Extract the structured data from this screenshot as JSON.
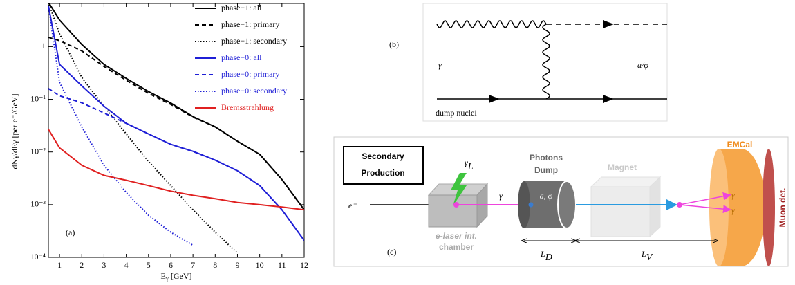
{
  "chart_data": {
    "type": "line",
    "ylabel": "dNγ/dEγ [per e⁻/GeV]",
    "xlabel": {
      "text": "E",
      "sub": "γ",
      "rest": " [GeV]"
    },
    "annotation": "(a)",
    "x": [
      0.5,
      1,
      2,
      3,
      4,
      5,
      6,
      7,
      8,
      9,
      10,
      11,
      12
    ],
    "xlim": [
      0.5,
      12
    ],
    "xticks": [
      1,
      2,
      3,
      4,
      5,
      6,
      7,
      8,
      9,
      10,
      11,
      12
    ],
    "ylog": true,
    "ylim": [
      0.0001,
      6.6
    ],
    "yticks": [
      {
        "value": 0.0001,
        "label": "10⁻⁴"
      },
      {
        "value": 0.001,
        "label": "10⁻³"
      },
      {
        "value": 0.01,
        "label": "10⁻²"
      },
      {
        "value": 0.1,
        "label": "10⁻¹"
      },
      1
    ],
    "legend": "upper right",
    "series": [
      {
        "name": "phase−1: all",
        "color": "#000000",
        "style": "solid",
        "values": [
          7,
          3.2,
          1.1,
          0.46,
          0.25,
          0.14,
          0.085,
          0.047,
          0.03,
          0.016,
          0.009,
          0.003,
          0.0008
        ]
      },
      {
        "name": "phase−1: primary",
        "color": "#000000",
        "style": "dashed",
        "values": [
          1.5,
          1.3,
          0.83,
          0.42,
          0.23,
          0.13,
          0.08,
          0.046,
          0.03,
          0.016,
          0.009,
          0.003,
          0.0008
        ]
      },
      {
        "name": "phase−1: secondary",
        "color": "#000000",
        "style": "dotted",
        "values": [
          7,
          1.75,
          0.26,
          0.074,
          0.022,
          0.0066,
          0.0023,
          0.0008,
          0.0003,
          0.00012,
          null,
          null,
          null
        ]
      },
      {
        "name": "phase−0: all",
        "color": "#1f1fd6",
        "style": "solid",
        "values": [
          6,
          0.46,
          0.18,
          0.074,
          0.035,
          0.022,
          0.014,
          0.0103,
          0.007,
          0.0044,
          0.0023,
          0.0008,
          0.00021
        ]
      },
      {
        "name": "phase−0: primary",
        "color": "#1f1fd6",
        "style": "dashed",
        "values": [
          0.16,
          0.117,
          0.086,
          0.055,
          0.035,
          0.022,
          0.014,
          0.0102,
          0.007,
          0.0044,
          0.0023,
          0.0008,
          0.00021
        ]
      },
      {
        "name": "phase−0: secondary",
        "color": "#1f1fd6",
        "style": "dotted",
        "values": [
          6,
          0.21,
          0.03,
          0.0056,
          0.0017,
          0.00063,
          0.0003,
          0.00017,
          null,
          null,
          null,
          null,
          null
        ]
      },
      {
        "name": "Bremsstrahlung",
        "color": "#e02020",
        "style": "solid",
        "values": [
          0.027,
          0.012,
          0.0056,
          0.0036,
          0.0029,
          0.0023,
          0.0018,
          0.0015,
          0.0013,
          0.0011,
          0.001,
          0.0009,
          0.0008
        ]
      }
    ]
  },
  "diagram_b": {
    "label": "(b)",
    "photon": "γ",
    "outgoing": "a/φ",
    "target": "dump nuclei"
  },
  "diagram_c": {
    "label": "(c)",
    "box_lines": [
      "Secondary",
      "Production"
    ],
    "laser": {
      "text": "γ",
      "sub": "L"
    },
    "electron": "e⁻",
    "photon": "γ",
    "chamber_lines": [
      "e-laser int.",
      "chamber"
    ],
    "dump_lines": [
      "Photons",
      "Dump"
    ],
    "axion": "a, φ",
    "magnet": "Magnet",
    "emcal": "EMCal",
    "muon": "Muon det.",
    "gamma_1": "γ",
    "gamma_2": "γ",
    "LD": {
      "text": "L",
      "sub": "D"
    },
    "LV": {
      "text": "L",
      "sub": "V"
    }
  }
}
